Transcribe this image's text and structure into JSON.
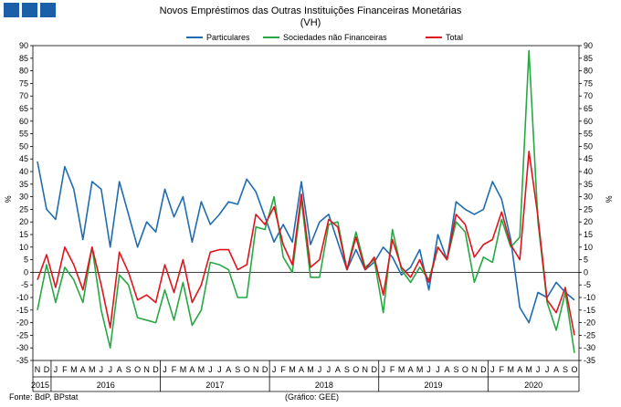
{
  "header": {
    "title": "Novos Empréstimos das Outras Instituições Financeiras Monetárias",
    "subtitle": "(VH)"
  },
  "footer": {
    "source": "Fonte: BdP, BPstat",
    "credit": "(Gráfico: GEE)"
  },
  "colors": {
    "particulares": "#1f6cb0",
    "sociedades": "#27a844",
    "total": "#e0141c",
    "logo": "#1a5fa8"
  },
  "chart_data": {
    "type": "line",
    "title": "Novos Empréstimos das Outras Instituições Financeiras Monetárias",
    "subtitle": "(VH)",
    "ylabel": "%",
    "ylabel_right": "%",
    "ylim": [
      -35,
      90
    ],
    "yticks": [
      -35,
      -30,
      -25,
      -20,
      -15,
      -10,
      -5,
      0,
      5,
      10,
      15,
      20,
      25,
      30,
      35,
      40,
      45,
      50,
      55,
      60,
      65,
      70,
      75,
      80,
      85,
      90
    ],
    "grid": false,
    "legend_position": "top",
    "month_labels": [
      "N",
      "D",
      "J",
      "F",
      "M",
      "A",
      "M",
      "J",
      "J",
      "A",
      "S",
      "O",
      "N",
      "D",
      "J",
      "F",
      "M",
      "A",
      "M",
      "J",
      "J",
      "A",
      "S",
      "O",
      "N",
      "D",
      "J",
      "F",
      "M",
      "A",
      "M",
      "J",
      "J",
      "A",
      "S",
      "O",
      "N",
      "D",
      "J",
      "F",
      "M",
      "A",
      "M",
      "J",
      "J",
      "A",
      "S",
      "O",
      "N",
      "D",
      "J",
      "F",
      "M",
      "A",
      "M",
      "J",
      "J",
      "A",
      "S",
      "O"
    ],
    "year_labels": [
      {
        "label": "2015",
        "start": 0,
        "end": 1
      },
      {
        "label": "2016",
        "start": 2,
        "end": 13
      },
      {
        "label": "2017",
        "start": 14,
        "end": 25
      },
      {
        "label": "2018",
        "start": 26,
        "end": 37
      },
      {
        "label": "2019",
        "start": 38,
        "end": 49
      },
      {
        "label": "2020",
        "start": 50,
        "end": 59
      }
    ],
    "series": [
      {
        "name": "Particulares",
        "color": "#1f6cb0",
        "values": [
          44,
          25,
          21,
          42,
          33,
          13,
          36,
          33,
          10,
          36,
          23,
          10,
          20,
          16,
          33,
          22,
          30,
          12,
          28,
          19,
          23,
          28,
          27,
          37,
          32,
          22,
          12,
          19,
          12,
          36,
          11,
          20,
          23,
          12,
          1,
          9,
          1,
          4,
          10,
          6,
          -1,
          2,
          9,
          -7,
          15,
          5,
          28,
          25,
          23,
          25,
          36,
          29,
          13,
          -14,
          -20,
          -8,
          -10,
          -4,
          -8,
          -11
        ]
      },
      {
        "name": "Sociedades não Financeiras",
        "color": "#27a844",
        "values": [
          -15,
          3,
          -12,
          2,
          -3,
          -12,
          10,
          -15,
          -30,
          -1,
          -5,
          -18,
          -19,
          -20,
          -7,
          -19,
          -4,
          -21,
          -15,
          4,
          3,
          1,
          -10,
          -10,
          18,
          17,
          30,
          6,
          0,
          29,
          -2,
          -2,
          19,
          20,
          1,
          16,
          2,
          5,
          -16,
          17,
          1,
          -4,
          2,
          -3,
          10,
          5,
          20,
          16,
          -4,
          6,
          4,
          21,
          10,
          14,
          88,
          20,
          -12,
          -23,
          -8,
          -32
        ]
      },
      {
        "name": "Total",
        "color": "#e0141c",
        "values": [
          -3,
          7,
          -6,
          10,
          3,
          -7,
          10,
          -5,
          -22,
          8,
          0,
          -11,
          -9,
          -12,
          3,
          -8,
          5,
          -12,
          -5,
          8,
          9,
          9,
          1,
          3,
          23,
          19,
          26,
          11,
          3,
          31,
          2,
          5,
          21,
          18,
          1,
          14,
          1,
          6,
          -9,
          13,
          2,
          -2,
          5,
          -4,
          10,
          5,
          23,
          19,
          6,
          11,
          13,
          24,
          11,
          5,
          48,
          22,
          -11,
          -16,
          -6,
          -25
        ]
      }
    ]
  }
}
